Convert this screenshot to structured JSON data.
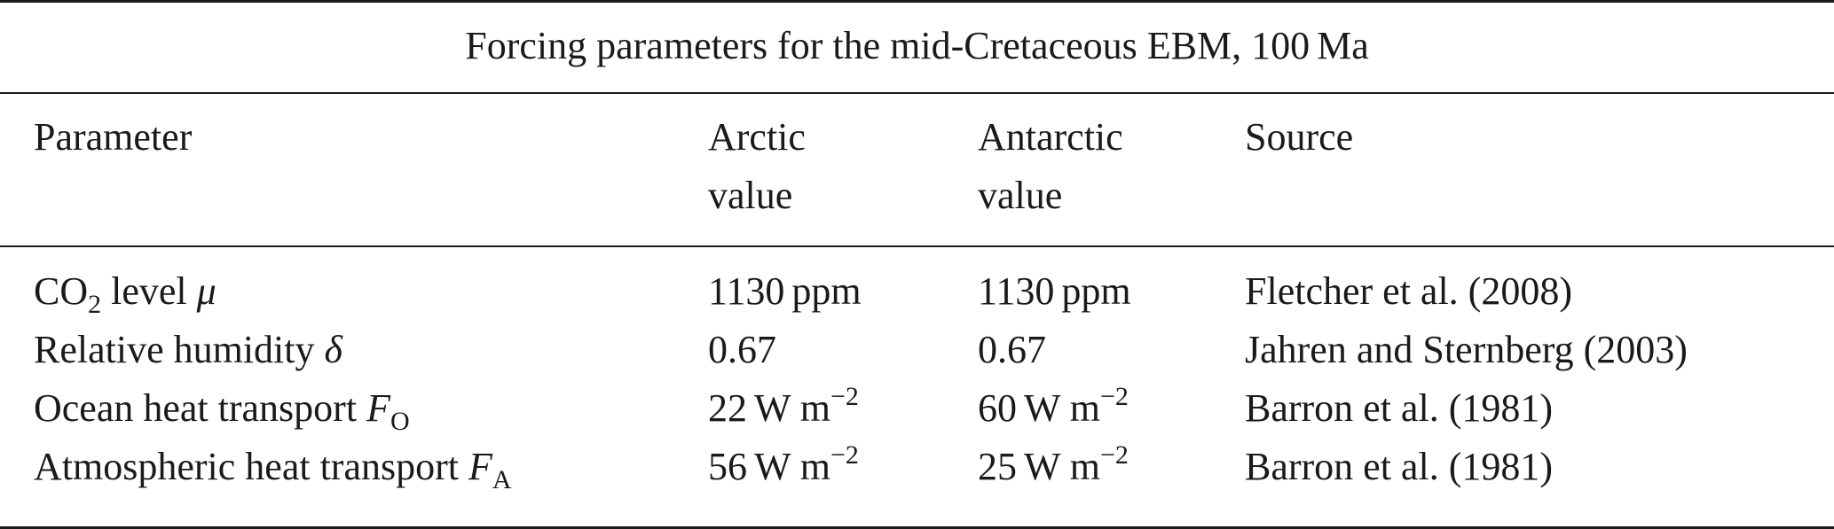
{
  "table": {
    "caption": "Forcing parameters for the mid-Cretaceous EBM, 100",
    "caption_unit": "Ma",
    "headers": {
      "parameter": "Parameter",
      "arctic_line1": "Arctic",
      "arctic_line2": "value",
      "antarctic_line1": "Antarctic",
      "antarctic_line2": "value",
      "source": "Source"
    },
    "rows": [
      {
        "param_text": "CO",
        "param_sub": "2",
        "param_text2": " level ",
        "param_symbol": "μ",
        "symbol_sub": "",
        "arctic_number": "1130",
        "arctic_unit": "ppm",
        "arctic_exp": "",
        "antarctic_number": "1130",
        "antarctic_unit": "ppm",
        "antarctic_exp": "",
        "source": "Fletcher et al. (2008)"
      },
      {
        "param_text": "Relative humidity ",
        "param_sub": "",
        "param_text2": "",
        "param_symbol": "δ",
        "symbol_sub": "",
        "arctic_number": "0.67",
        "arctic_unit": "",
        "arctic_exp": "",
        "antarctic_number": "0.67",
        "antarctic_unit": "",
        "antarctic_exp": "",
        "source": "Jahren and Sternberg (2003)"
      },
      {
        "param_text": "Ocean heat transport ",
        "param_sub": "",
        "param_text2": "",
        "param_symbol": "F",
        "symbol_sub": "O",
        "arctic_number": "22",
        "arctic_unit": "W m",
        "arctic_exp": "−2",
        "antarctic_number": "60",
        "antarctic_unit": "W m",
        "antarctic_exp": "−2",
        "source": "Barron et al. (1981)"
      },
      {
        "param_text": "Atmospheric heat transport ",
        "param_sub": "",
        "param_text2": "",
        "param_symbol": "F",
        "symbol_sub": "A",
        "arctic_number": "56",
        "arctic_unit": "W m",
        "arctic_exp": "−2",
        "antarctic_number": "25",
        "antarctic_unit": "W m",
        "antarctic_exp": "−2",
        "source": "Barron et al. (1981)"
      }
    ]
  }
}
